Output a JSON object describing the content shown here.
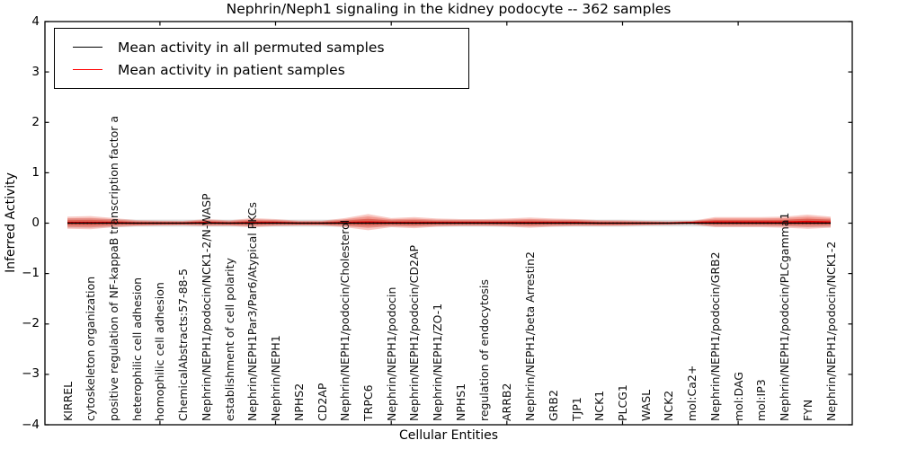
{
  "chart_data": {
    "type": "line",
    "title": "Nephrin/Neph1 signaling in the kidney podocyte -- 362 samples",
    "xlabel": "Cellular Entities",
    "ylabel": "Inferred Activity",
    "ylim": [
      -4,
      4
    ],
    "yticks": [
      "4",
      "3",
      "2",
      "1",
      "0",
      "−1",
      "−2",
      "−3",
      "−4"
    ],
    "grid": false,
    "legend_position": "upper left",
    "legend": [
      {
        "label": "Mean activity in all permuted samples",
        "color": "#000000"
      },
      {
        "label": "Mean activity in patient samples",
        "color": "#ff0000"
      }
    ],
    "categories": [
      "KIRREL",
      "cytoskeleton organization",
      "positive regulation of NF-kappaB transcription factor a",
      "heterophilic cell adhesion",
      "homophilic cell adhesion",
      "ChemicalAbstracts:57-88-5",
      "Nephrin/NEPH1/podocin/NCK1-2/N-WASP",
      "establishment of cell polarity",
      "Nephrin/NEPH1Par3/Par6/Atypical PKCs",
      "Nephrin/NEPH1",
      "NPHS2",
      "CD2AP",
      "Nephrin/NEPH1/podocin/Cholesterol",
      "TRPC6",
      "Nephrin/NEPH1/podocin",
      "Nephrin/NEPH1/podocin/CD2AP",
      "Nephrin/NEPH1/ZO-1",
      "NPHS1",
      "regulation of endocytosis",
      "ARRB2",
      "Nephrin/NEPH1/beta Arrestin2",
      "GRB2",
      "TJP1",
      "NCK1",
      "PLCG1",
      "WASL",
      "NCK2",
      "mol:Ca2+",
      "Nephrin/NEPH1/podocin/GRB2",
      "mol:DAG",
      "mol:IP3",
      "Nephrin/NEPH1/podocin/PLCgamma1",
      "FYN",
      "Nephrin/NEPH1/podocin/NCK1-2"
    ],
    "series": [
      {
        "name": "Mean activity in all permuted samples",
        "color": "#000000",
        "values": [
          0,
          0,
          0,
          0,
          0,
          0,
          0,
          0,
          0,
          0,
          0,
          0,
          0,
          0,
          0,
          0,
          0,
          0,
          0,
          0,
          0,
          0,
          0,
          0,
          0,
          0,
          0,
          0,
          0,
          0,
          0,
          0,
          0,
          0
        ]
      },
      {
        "name": "Mean activity in patient samples",
        "color": "#e60000",
        "values": [
          0.01,
          0.01,
          0.01,
          0,
          0,
          0,
          0.01,
          0,
          0.01,
          0.01,
          0,
          0,
          0.01,
          0.02,
          0.01,
          0.01,
          0.01,
          0.01,
          0.01,
          0.01,
          0.01,
          0.01,
          0.01,
          0,
          0,
          0,
          0,
          0.01,
          0.02,
          0.02,
          0.02,
          0.02,
          0.03,
          0.02
        ]
      }
    ],
    "bands": {
      "patient_std_halfwidth": [
        0.12,
        0.13,
        0.09,
        0.06,
        0.05,
        0.045,
        0.07,
        0.055,
        0.09,
        0.07,
        0.05,
        0.05,
        0.09,
        0.16,
        0.09,
        0.11,
        0.08,
        0.07,
        0.07,
        0.08,
        0.1,
        0.08,
        0.07,
        0.06,
        0.055,
        0.045,
        0.035,
        0.035,
        0.1,
        0.1,
        0.1,
        0.11,
        0.14,
        0.11
      ],
      "permuted_std_halfwidth": [
        0.09,
        0.09,
        0.08,
        0.07,
        0.07,
        0.07,
        0.07,
        0.07,
        0.07,
        0.07,
        0.07,
        0.07,
        0.07,
        0.08,
        0.07,
        0.07,
        0.07,
        0.07,
        0.07,
        0.07,
        0.07,
        0.07,
        0.07,
        0.07,
        0.07,
        0.065,
        0.065,
        0.065,
        0.07,
        0.07,
        0.07,
        0.07,
        0.08,
        0.08
      ],
      "patient_band_color": "#e74c3c",
      "permuted_band_color": "#999999"
    },
    "zero_line": {
      "y": 0,
      "style": "dotted",
      "color": "#000000"
    }
  }
}
